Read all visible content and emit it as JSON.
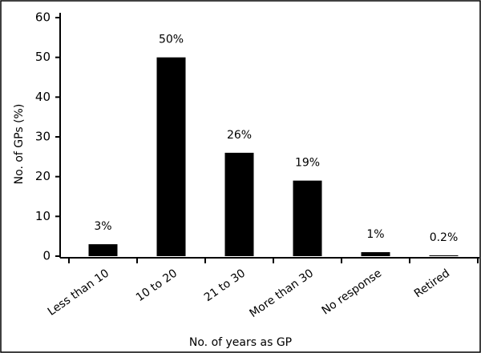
{
  "chart_data": {
    "type": "bar",
    "x_label": "No. of years as GP",
    "y_label": "No. of GPs (%)",
    "categories": [
      "Less than 10",
      "10 to 20",
      "21 to 30",
      "More than 30",
      "No response",
      "Retired"
    ],
    "values": [
      3,
      50,
      26,
      19,
      1,
      0.2
    ],
    "value_labels": [
      "3%",
      "50%",
      "26%",
      "19%",
      "1%",
      "0.2%"
    ],
    "color": "#000000",
    "ylim": [
      0,
      60
    ],
    "yticks": [
      0,
      10,
      20,
      30,
      40,
      50,
      60
    ]
  }
}
